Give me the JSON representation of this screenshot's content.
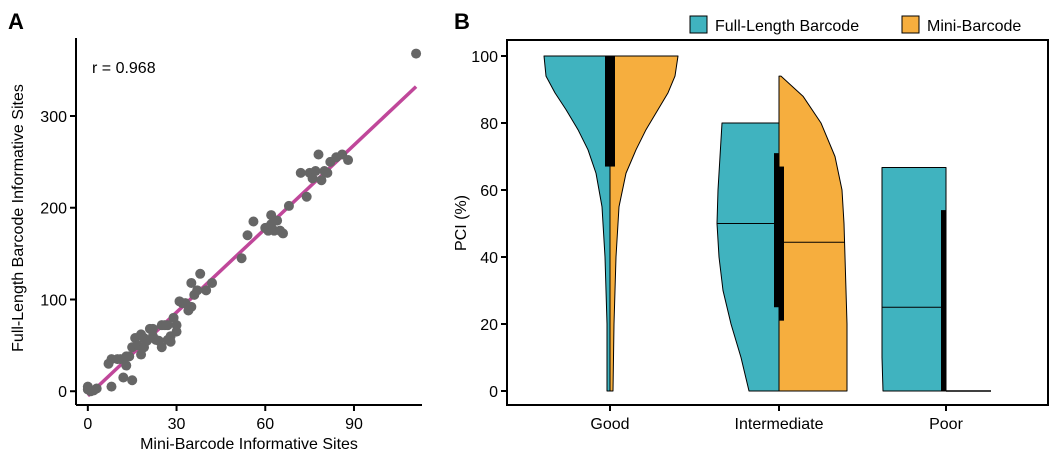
{
  "panels": {
    "a_label": "A",
    "b_label": "B"
  },
  "chart_data": [
    {
      "type": "scatter",
      "panel": "A",
      "xlabel": "Mini-Barcode Informative Sites",
      "ylabel": "Full-Length Barcode Informative Sites",
      "xlim": [
        -4,
        113
      ],
      "ylim": [
        -15,
        385
      ],
      "xticks": [
        0,
        30,
        60,
        90
      ],
      "yticks": [
        0,
        100,
        200,
        300
      ],
      "annotation": "r = 0.968",
      "grid": false,
      "colors": {
        "points": "#666666",
        "fit_line": "#c0479a"
      },
      "fit_line": {
        "x": [
          0,
          111
        ],
        "y": [
          -5,
          332
        ]
      },
      "points": [
        [
          0,
          5
        ],
        [
          0,
          2
        ],
        [
          1,
          0
        ],
        [
          2,
          1
        ],
        [
          3,
          3
        ],
        [
          7,
          30
        ],
        [
          8,
          5
        ],
        [
          8,
          35
        ],
        [
          10,
          35
        ],
        [
          11,
          35
        ],
        [
          12,
          15
        ],
        [
          13,
          38
        ],
        [
          13,
          28
        ],
        [
          14,
          38
        ],
        [
          15,
          12
        ],
        [
          15,
          48
        ],
        [
          16,
          58
        ],
        [
          17,
          50
        ],
        [
          18,
          40
        ],
        [
          18,
          62
        ],
        [
          19,
          58
        ],
        [
          19,
          48
        ],
        [
          20,
          55
        ],
        [
          21,
          68
        ],
        [
          22,
          60
        ],
        [
          22,
          68
        ],
        [
          23,
          56
        ],
        [
          24,
          55
        ],
        [
          25,
          72
        ],
        [
          25,
          48
        ],
        [
          26,
          72
        ],
        [
          27,
          56
        ],
        [
          27,
          72
        ],
        [
          28,
          60
        ],
        [
          28,
          54
        ],
        [
          29,
          80
        ],
        [
          30,
          72
        ],
        [
          30,
          65
        ],
        [
          31,
          98
        ],
        [
          32,
          96
        ],
        [
          33,
          96
        ],
        [
          34,
          88
        ],
        [
          35,
          118
        ],
        [
          35,
          92
        ],
        [
          36,
          105
        ],
        [
          37,
          110
        ],
        [
          38,
          128
        ],
        [
          40,
          110
        ],
        [
          42,
          118
        ],
        [
          52,
          145
        ],
        [
          54,
          170
        ],
        [
          56,
          185
        ],
        [
          60,
          178
        ],
        [
          61,
          175
        ],
        [
          62,
          182
        ],
        [
          62,
          192
        ],
        [
          63,
          175
        ],
        [
          64,
          186
        ],
        [
          65,
          175
        ],
        [
          66,
          172
        ],
        [
          68,
          202
        ],
        [
          72,
          238
        ],
        [
          74,
          212
        ],
        [
          75,
          238
        ],
        [
          76,
          232
        ],
        [
          77,
          240
        ],
        [
          78,
          258
        ],
        [
          79,
          230
        ],
        [
          80,
          240
        ],
        [
          81,
          238
        ],
        [
          82,
          250
        ],
        [
          84,
          255
        ],
        [
          86,
          258
        ],
        [
          88,
          252
        ],
        [
          111,
          368
        ]
      ]
    },
    {
      "type": "split-violin",
      "panel": "B",
      "categories": [
        "Good",
        "Intermediate",
        "Poor"
      ],
      "ylabel": "PCI (%)",
      "xlabel": "",
      "ylim": [
        0,
        100
      ],
      "yticks": [
        0,
        20,
        40,
        60,
        80,
        100
      ],
      "legend": "top-right",
      "grid": false,
      "series": [
        {
          "name": "Full-Length Barcode",
          "color": "#40b3bf",
          "groups": [
            {
              "category": "Good",
              "min": 0,
              "max": 100,
              "median": 100,
              "iqr": [
                67,
                100
              ]
            },
            {
              "category": "Intermediate",
              "min": 0,
              "max": 80,
              "median": 50,
              "iqr": [
                25,
                71
              ]
            },
            {
              "category": "Poor",
              "min": 0,
              "max": 66.7,
              "median": 25,
              "iqr": [
                0,
                54
              ]
            }
          ]
        },
        {
          "name": "Mini-Barcode",
          "color": "#f6ae3e",
          "groups": [
            {
              "category": "Good",
              "min": 0,
              "max": 100,
              "median": 100,
              "iqr": [
                67,
                100
              ]
            },
            {
              "category": "Intermediate",
              "min": 0,
              "max": 94,
              "median": 44.4,
              "iqr": [
                21,
                67
              ]
            },
            {
              "category": "Poor",
              "min": 0,
              "max": 0,
              "median": 0,
              "iqr": [
                0,
                0
              ]
            }
          ]
        }
      ]
    }
  ]
}
